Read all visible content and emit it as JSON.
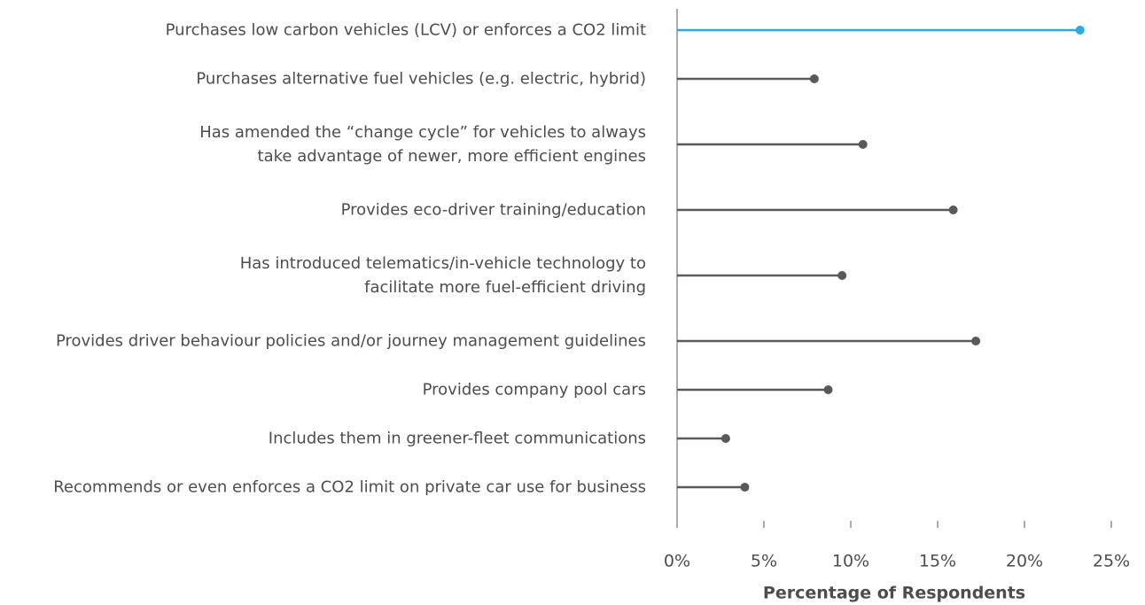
{
  "chart_data": {
    "type": "lollipop",
    "categories": [
      "Purchases low carbon vehicles (LCV) or enforces a CO2 limit",
      "Purchases alternative fuel vehicles (e.g. electric, hybrid)",
      "Has amended the “change cycle” for vehicles to always\ntake advantage of newer, more efficient engines",
      "Provides eco-driver training/education",
      "Has introduced telematics/in-vehicle technology to\nfacilitate more fuel-efficient driving",
      "Provides driver behaviour policies and/or journey management guidelines",
      "Provides company pool cars",
      "Includes them in greener-fleet communications",
      "Recommends or even enforces a CO2 limit on private car use for business"
    ],
    "values": [
      23.2,
      7.9,
      10.7,
      15.9,
      9.5,
      17.2,
      8.7,
      2.8,
      3.9
    ],
    "colors": [
      "#29abe2",
      "#58595b",
      "#58595b",
      "#58595b",
      "#58595b",
      "#58595b",
      "#58595b",
      "#58595b",
      "#58595b"
    ],
    "xlabel": "Percentage of Respondents",
    "xlim": [
      0,
      25
    ],
    "xticks": [
      {
        "value": 0,
        "label": "0%"
      },
      {
        "value": 5,
        "label": "5%"
      },
      {
        "value": 10,
        "label": "10%"
      },
      {
        "value": 15,
        "label": "15%"
      },
      {
        "value": 20,
        "label": "20%"
      },
      {
        "value": 25,
        "label": "25%"
      }
    ]
  }
}
